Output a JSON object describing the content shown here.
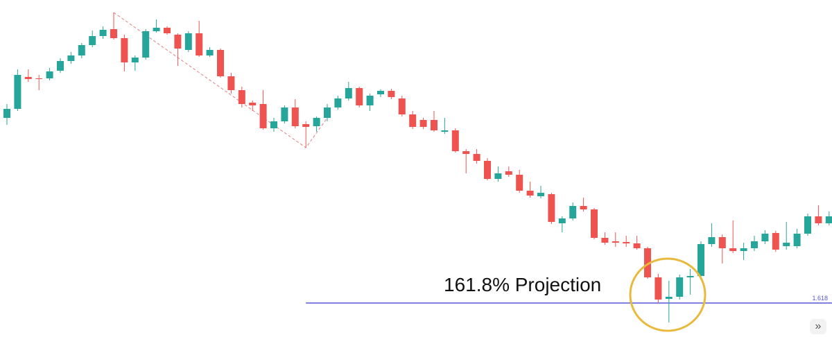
{
  "chart_data": {
    "type": "candlestick",
    "ylim": [
      0,
      486
    ],
    "up_color": "#26a69a",
    "down_color": "#ef5350",
    "open": [
      316,
      329,
      375,
      373,
      373,
      384,
      398,
      406,
      421,
      434,
      444,
      431,
      396,
      403,
      441,
      446,
      436,
      414,
      438,
      406,
      414,
      376,
      356,
      338,
      336,
      301,
      311,
      331,
      307,
      304,
      316,
      331,
      344,
      359,
      334,
      350,
      355,
      344,
      321,
      313,
      313,
      296,
      298,
      268,
      264,
      254,
      228,
      239,
      234,
      211,
      203,
      206,
      164,
      171,
      189,
      184,
      143,
      138,
      137,
      135,
      128,
      86,
      55,
      58,
      86,
      88,
      134,
      144,
      128,
      124,
      128,
      138,
      150,
      131,
      131,
      149,
      174,
      164
    ],
    "high": [
      336,
      386,
      386,
      378,
      388,
      402,
      411,
      424,
      442,
      448,
      468,
      436,
      406,
      444,
      458,
      448,
      438,
      441,
      456,
      418,
      416,
      381,
      361,
      341,
      356,
      316,
      334,
      343,
      311,
      318,
      336,
      348,
      368,
      361,
      351,
      357,
      358,
      348,
      326,
      316,
      326,
      316,
      301,
      271,
      271,
      258,
      246,
      246,
      241,
      224,
      218,
      208,
      174,
      194,
      201,
      186,
      151,
      151,
      146,
      146,
      130,
      91,
      81,
      90,
      98,
      138,
      164,
      148,
      168,
      136,
      146,
      154,
      153,
      166,
      156,
      178,
      190,
      181
    ],
    "low": [
      306,
      326,
      368,
      356,
      370,
      381,
      394,
      402,
      418,
      430,
      429,
      383,
      384,
      400,
      439,
      436,
      391,
      411,
      404,
      404,
      374,
      351,
      331,
      326,
      299,
      296,
      308,
      301,
      273,
      296,
      311,
      328,
      341,
      331,
      326,
      346,
      343,
      318,
      300,
      300,
      296,
      293,
      266,
      236,
      250,
      226,
      224,
      231,
      208,
      201,
      200,
      163,
      151,
      168,
      181,
      141,
      133,
      130,
      130,
      126,
      84,
      49,
      21,
      54,
      61,
      86,
      130,
      106,
      121,
      111,
      124,
      134,
      123,
      126,
      128,
      146,
      161,
      161
    ],
    "close": [
      329,
      378,
      372,
      372,
      383,
      398,
      406,
      421,
      434,
      443,
      431,
      396,
      403,
      441,
      446,
      438,
      416,
      438,
      406,
      414,
      376,
      356,
      336,
      334,
      301,
      311,
      331,
      304,
      303,
      316,
      331,
      344,
      359,
      334,
      348,
      355,
      346,
      321,
      303,
      303,
      298,
      298,
      268,
      264,
      254,
      228,
      236,
      234,
      211,
      204,
      208,
      166,
      171,
      189,
      184,
      143,
      136,
      136,
      135,
      128,
      86,
      54,
      58,
      86,
      88,
      134,
      144,
      128,
      124,
      128,
      138,
      149,
      126,
      136,
      149,
      174,
      164,
      174
    ],
    "pattern": {
      "index": [
        10,
        28,
        30
      ],
      "price": [
        468,
        273,
        316
      ],
      "color": "#e08080"
    },
    "projection": {
      "ratio": 1.618,
      "price": 49,
      "start_index": 28,
      "color": "#5656d8"
    },
    "annotation": "161.8% Projection",
    "highlight_color": "#e8b93a"
  },
  "ui": {
    "scroll_button": "»"
  }
}
